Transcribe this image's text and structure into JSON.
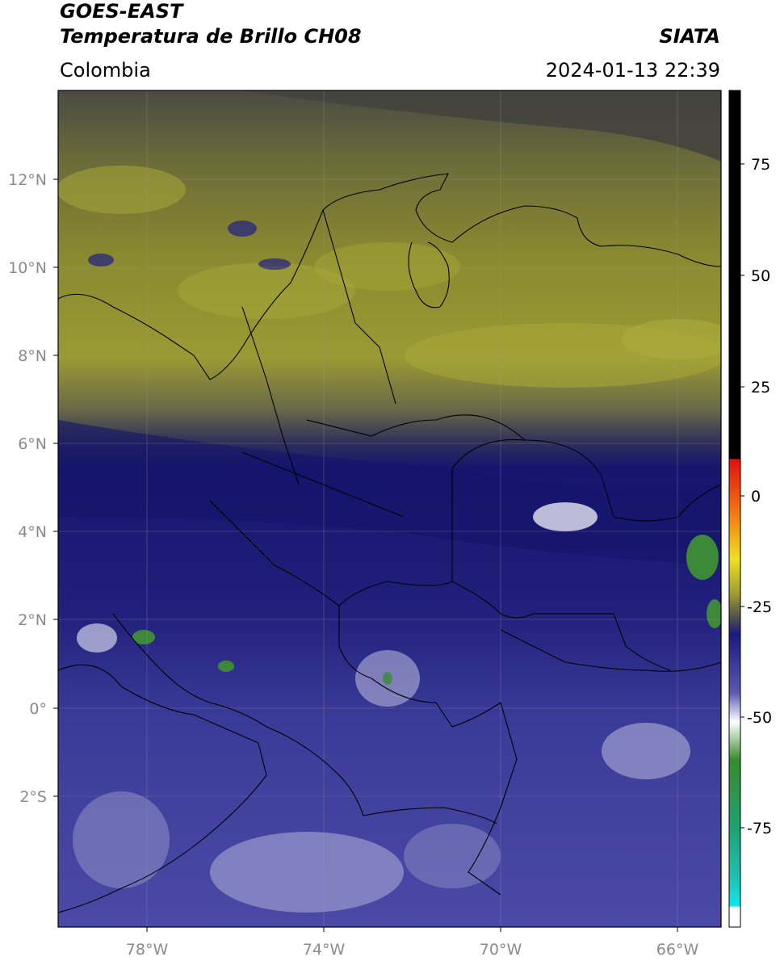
{
  "header": {
    "line1": "GOES-EAST",
    "line2": "Temperatura de Brillo CH08",
    "brand": "SIATA",
    "region": "Colombia",
    "timestamp": "2024-01-13 22:39"
  },
  "axes": {
    "lat_labels": [
      "12°N",
      "10°N",
      "8°N",
      "6°N",
      "4°N",
      "2°N",
      "0°",
      "2°S"
    ],
    "lon_labels": [
      "78°W",
      "74°W",
      "70°W",
      "66°W"
    ]
  },
  "colorbar": {
    "ticks": [
      "75",
      "50",
      "25",
      "0",
      "-25",
      "-50",
      "-75"
    ],
    "colors": {
      "top": "#000000",
      "red": "#e02010",
      "orange": "#f09010",
      "yellow": "#e8e020",
      "olive": "#a0a030",
      "gray": "#505050",
      "navy": "#1a1a80",
      "blue": "#5a5ab0",
      "white": "#ffffff",
      "green": "#3a8a30",
      "teal": "#20c0a0",
      "cyan": "#10e0e0"
    }
  },
  "map_colors": {
    "gray_top": "#4a4a44",
    "olive": "#8a8a30",
    "olive_light": "#a8a838",
    "navy": "#16166e",
    "blue": "#3a3a98",
    "blue_light": "#6a6ab8",
    "cloud_white": "#e6e6f2",
    "green": "#3c8a38"
  }
}
